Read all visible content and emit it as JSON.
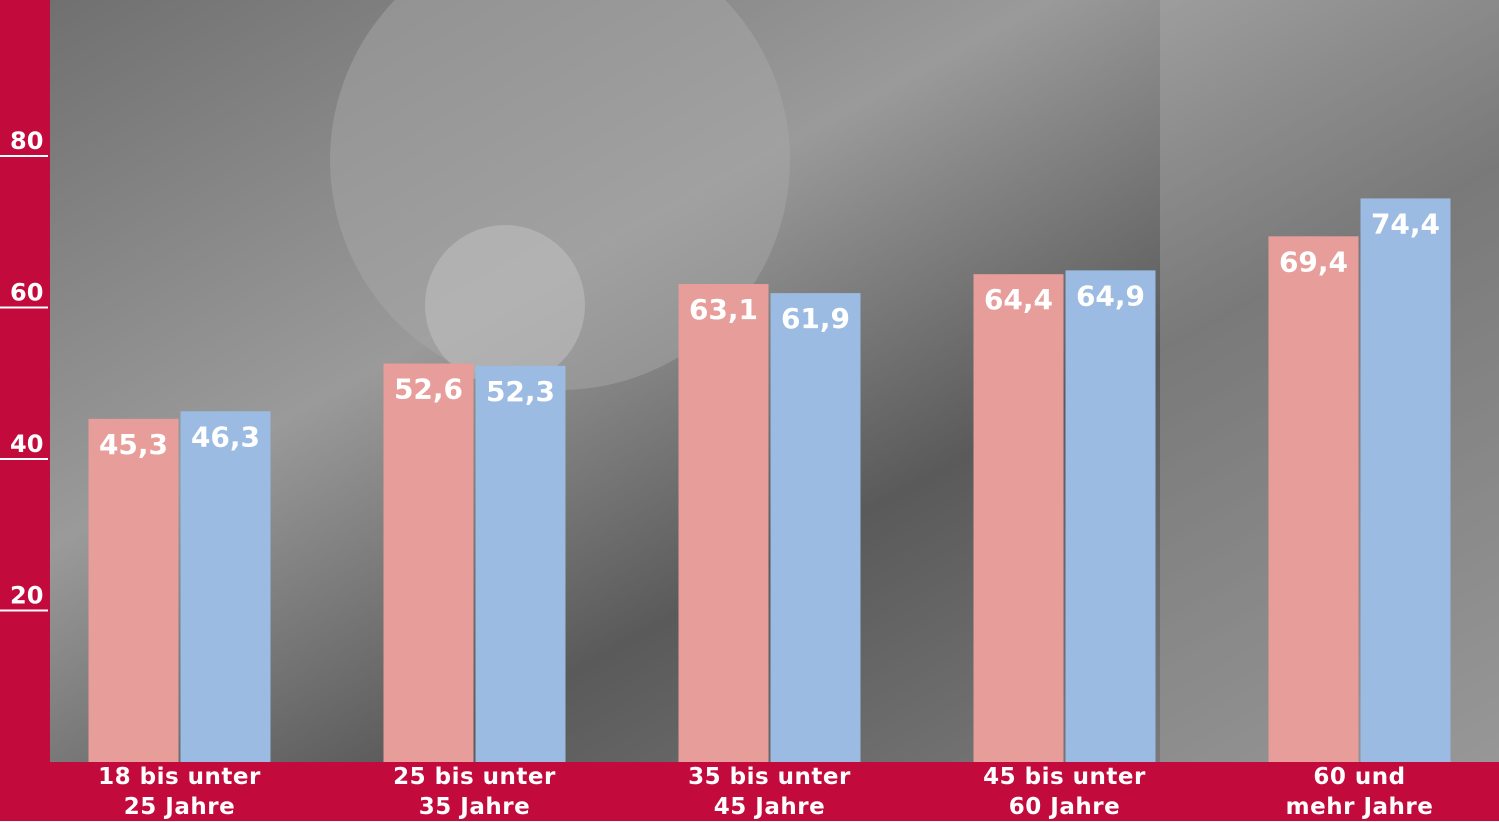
{
  "chart_data": {
    "type": "bar",
    "categories": [
      "18 bis unter\n25 Jahre",
      "25 bis unter\n35 Jahre",
      "35 bis unter\n45 Jahre",
      "45 bis unter\n60 Jahre",
      "60 und\nmehr Jahre"
    ],
    "series": [
      {
        "color": "#e79d99",
        "values": [
          45.3,
          52.6,
          63.1,
          64.4,
          69.4
        ],
        "value_labels": [
          "45,3",
          "52,6",
          "63,1",
          "64,4",
          "69,4"
        ]
      },
      {
        "color": "#9bbbe2",
        "values": [
          46.3,
          52.3,
          61.9,
          64.9,
          74.4
        ],
        "value_labels": [
          "46,3",
          "52,3",
          "61,9",
          "64,9",
          "74,4"
        ]
      }
    ],
    "ylim": [
      0,
      100
    ],
    "yticks": [
      20,
      40,
      60,
      80
    ]
  }
}
